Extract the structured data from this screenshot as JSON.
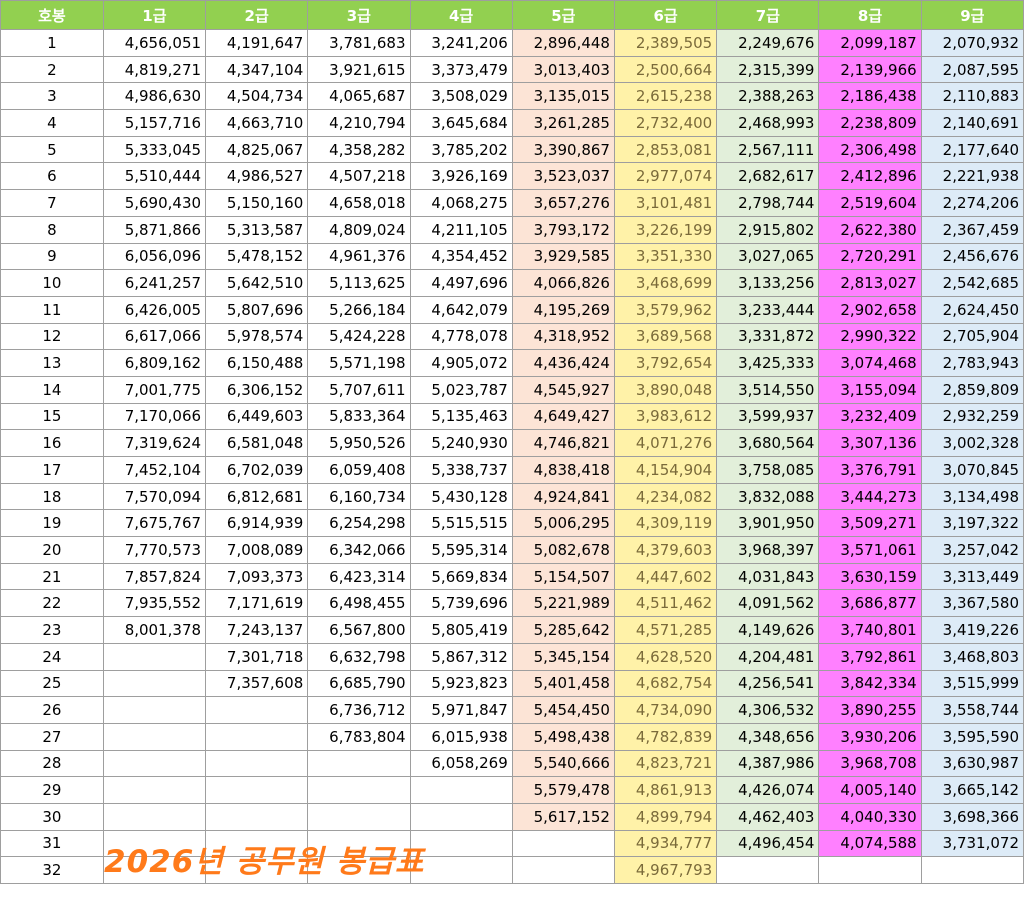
{
  "header": [
    "호봉",
    "1급",
    "2급",
    "3급",
    "4급",
    "5급",
    "6급",
    "7급",
    "8급",
    "9급"
  ],
  "title_overlay": "2026년 공무원 봉급표",
  "colors": {
    "header_bg": "#92d050",
    "grade5": "#fce4d6",
    "grade6": "#fff2a8",
    "grade7": "#e2efda",
    "grade8": "#ff80ff",
    "grade9": "#ddebf7",
    "title": "#ff7a1a"
  },
  "rows": [
    [
      "1",
      "4,656,051",
      "4,191,647",
      "3,781,683",
      "3,241,206",
      "2,896,448",
      "2,389,505",
      "2,249,676",
      "2,099,187",
      "2,070,932"
    ],
    [
      "2",
      "4,819,271",
      "4,347,104",
      "3,921,615",
      "3,373,479",
      "3,013,403",
      "2,500,664",
      "2,315,399",
      "2,139,966",
      "2,087,595"
    ],
    [
      "3",
      "4,986,630",
      "4,504,734",
      "4,065,687",
      "3,508,029",
      "3,135,015",
      "2,615,238",
      "2,388,263",
      "2,186,438",
      "2,110,883"
    ],
    [
      "4",
      "5,157,716",
      "4,663,710",
      "4,210,794",
      "3,645,684",
      "3,261,285",
      "2,732,400",
      "2,468,993",
      "2,238,809",
      "2,140,691"
    ],
    [
      "5",
      "5,333,045",
      "4,825,067",
      "4,358,282",
      "3,785,202",
      "3,390,867",
      "2,853,081",
      "2,567,111",
      "2,306,498",
      "2,177,640"
    ],
    [
      "6",
      "5,510,444",
      "4,986,527",
      "4,507,218",
      "3,926,169",
      "3,523,037",
      "2,977,074",
      "2,682,617",
      "2,412,896",
      "2,221,938"
    ],
    [
      "7",
      "5,690,430",
      "5,150,160",
      "4,658,018",
      "4,068,275",
      "3,657,276",
      "3,101,481",
      "2,798,744",
      "2,519,604",
      "2,274,206"
    ],
    [
      "8",
      "5,871,866",
      "5,313,587",
      "4,809,024",
      "4,211,105",
      "3,793,172",
      "3,226,199",
      "2,915,802",
      "2,622,380",
      "2,367,459"
    ],
    [
      "9",
      "6,056,096",
      "5,478,152",
      "4,961,376",
      "4,354,452",
      "3,929,585",
      "3,351,330",
      "3,027,065",
      "2,720,291",
      "2,456,676"
    ],
    [
      "10",
      "6,241,257",
      "5,642,510",
      "5,113,625",
      "4,497,696",
      "4,066,826",
      "3,468,699",
      "3,133,256",
      "2,813,027",
      "2,542,685"
    ],
    [
      "11",
      "6,426,005",
      "5,807,696",
      "5,266,184",
      "4,642,079",
      "4,195,269",
      "3,579,962",
      "3,233,444",
      "2,902,658",
      "2,624,450"
    ],
    [
      "12",
      "6,617,066",
      "5,978,574",
      "5,424,228",
      "4,778,078",
      "4,318,952",
      "3,689,568",
      "3,331,872",
      "2,990,322",
      "2,705,904"
    ],
    [
      "13",
      "6,809,162",
      "6,150,488",
      "5,571,198",
      "4,905,072",
      "4,436,424",
      "3,792,654",
      "3,425,333",
      "3,074,468",
      "2,783,943"
    ],
    [
      "14",
      "7,001,775",
      "6,306,152",
      "5,707,611",
      "5,023,787",
      "4,545,927",
      "3,890,048",
      "3,514,550",
      "3,155,094",
      "2,859,809"
    ],
    [
      "15",
      "7,170,066",
      "6,449,603",
      "5,833,364",
      "5,135,463",
      "4,649,427",
      "3,983,612",
      "3,599,937",
      "3,232,409",
      "2,932,259"
    ],
    [
      "16",
      "7,319,624",
      "6,581,048",
      "5,950,526",
      "5,240,930",
      "4,746,821",
      "4,071,276",
      "3,680,564",
      "3,307,136",
      "3,002,328"
    ],
    [
      "17",
      "7,452,104",
      "6,702,039",
      "6,059,408",
      "5,338,737",
      "4,838,418",
      "4,154,904",
      "3,758,085",
      "3,376,791",
      "3,070,845"
    ],
    [
      "18",
      "7,570,094",
      "6,812,681",
      "6,160,734",
      "5,430,128",
      "4,924,841",
      "4,234,082",
      "3,832,088",
      "3,444,273",
      "3,134,498"
    ],
    [
      "19",
      "7,675,767",
      "6,914,939",
      "6,254,298",
      "5,515,515",
      "5,006,295",
      "4,309,119",
      "3,901,950",
      "3,509,271",
      "3,197,322"
    ],
    [
      "20",
      "7,770,573",
      "7,008,089",
      "6,342,066",
      "5,595,314",
      "5,082,678",
      "4,379,603",
      "3,968,397",
      "3,571,061",
      "3,257,042"
    ],
    [
      "21",
      "7,857,824",
      "7,093,373",
      "6,423,314",
      "5,669,834",
      "5,154,507",
      "4,447,602",
      "4,031,843",
      "3,630,159",
      "3,313,449"
    ],
    [
      "22",
      "7,935,552",
      "7,171,619",
      "6,498,455",
      "5,739,696",
      "5,221,989",
      "4,511,462",
      "4,091,562",
      "3,686,877",
      "3,367,580"
    ],
    [
      "23",
      "8,001,378",
      "7,243,137",
      "6,567,800",
      "5,805,419",
      "5,285,642",
      "4,571,285",
      "4,149,626",
      "3,740,801",
      "3,419,226"
    ],
    [
      "24",
      "",
      "7,301,718",
      "6,632,798",
      "5,867,312",
      "5,345,154",
      "4,628,520",
      "4,204,481",
      "3,792,861",
      "3,468,803"
    ],
    [
      "25",
      "",
      "7,357,608",
      "6,685,790",
      "5,923,823",
      "5,401,458",
      "4,682,754",
      "4,256,541",
      "3,842,334",
      "3,515,999"
    ],
    [
      "26",
      "",
      "",
      "6,736,712",
      "5,971,847",
      "5,454,450",
      "4,734,090",
      "4,306,532",
      "3,890,255",
      "3,558,744"
    ],
    [
      "27",
      "",
      "",
      "6,783,804",
      "6,015,938",
      "5,498,438",
      "4,782,839",
      "4,348,656",
      "3,930,206",
      "3,595,590"
    ],
    [
      "28",
      "",
      "",
      "",
      "6,058,269",
      "5,540,666",
      "4,823,721",
      "4,387,986",
      "3,968,708",
      "3,630,987"
    ],
    [
      "29",
      "",
      "",
      "",
      "",
      "5,579,478",
      "4,861,913",
      "4,426,074",
      "4,005,140",
      "3,665,142"
    ],
    [
      "30",
      "",
      "",
      "",
      "",
      "5,617,152",
      "4,899,794",
      "4,462,403",
      "4,040,330",
      "3,698,366"
    ],
    [
      "31",
      "",
      "",
      "",
      "",
      "",
      "4,934,777",
      "4,496,454",
      "4,074,588",
      "3,731,072"
    ],
    [
      "32",
      "",
      "",
      "",
      "",
      "",
      "4,967,793",
      "",
      "",
      ""
    ]
  ]
}
